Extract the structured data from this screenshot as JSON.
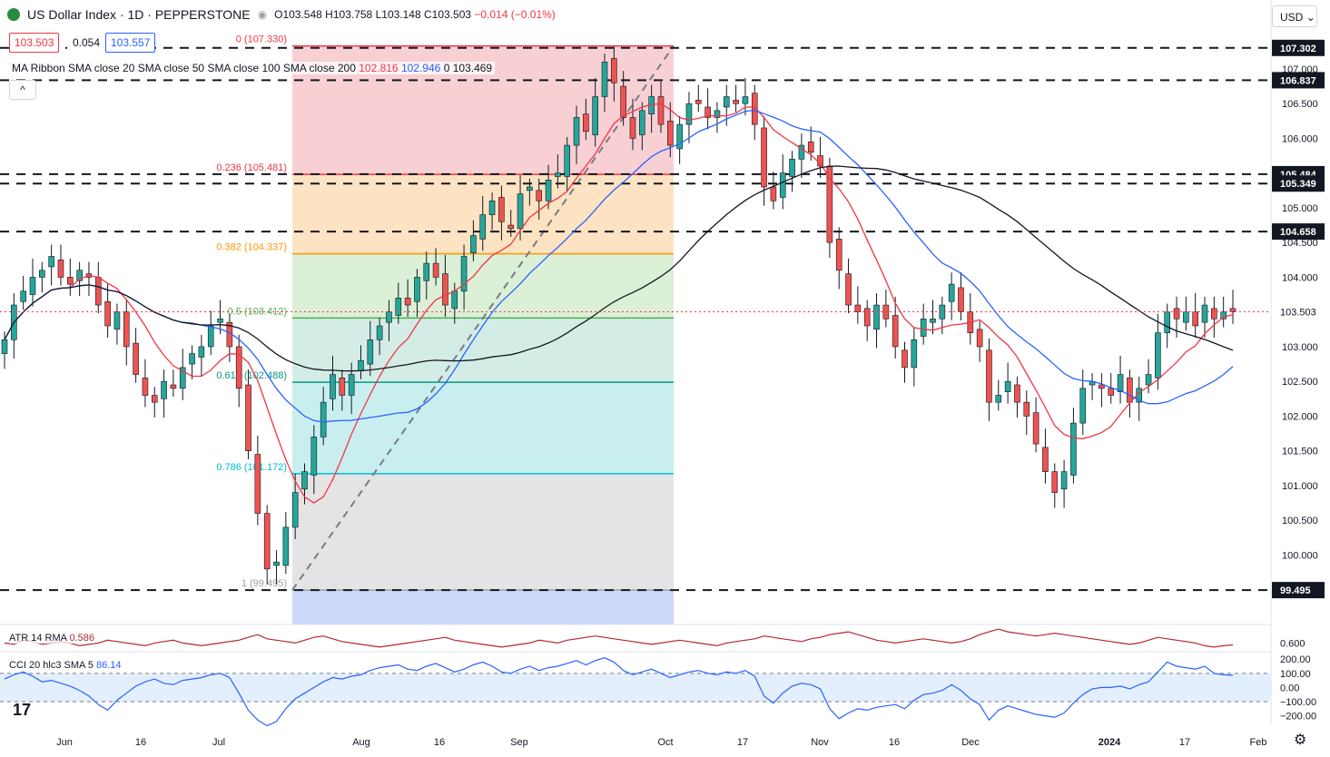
{
  "header": {
    "symbol_title": "US Dollar Index · 1D · PEPPERSTONE",
    "ohlc": {
      "o_label": "O",
      "o": "103.548",
      "h_label": "H",
      "h": "103.758",
      "l_label": "L",
      "l": "103.148",
      "c_label": "C",
      "c": "103.503",
      "change": "−0.014 (−0.01%)"
    },
    "bid": "103.503",
    "spread": "0.054",
    "ask": "103.557",
    "currency": "USD",
    "collapse_glyph": "^",
    "logo": "17"
  },
  "ribbon_legend": {
    "label": "MA Ribbon SMA close 20 SMA close 50 SMA close 100 SMA close 200",
    "v20": "102.816",
    "v50": "102.946",
    "v100": "0",
    "v200": "103.469"
  },
  "colors": {
    "up": "#26a69a",
    "down": "#ef5350",
    "sma20": "#f23645",
    "sma50": "#2962ff",
    "sma200": "#131722",
    "atr": "#b22833",
    "cci": "#2962ff",
    "last": "#f23645"
  },
  "chart_data": [
    {
      "type": "candlestick",
      "title": "US Dollar Index · 1D · PEPPERSTONE",
      "ylim": [
        99.0,
        107.6
      ],
      "y_ticks": [
        100.0,
        100.5,
        101.0,
        101.5,
        102.0,
        102.5,
        103.0,
        103.5,
        104.0,
        104.5,
        105.0,
        105.5,
        106.0,
        106.5,
        107.0
      ],
      "x_ticks": [
        "Jun",
        "16",
        "Jul",
        "Aug",
        "16",
        "Sep",
        "Oct",
        "17",
        "Nov",
        "16",
        "Dec",
        "2024",
        "17",
        "Feb"
      ],
      "horizontal_levels": [
        107.302,
        106.837,
        105.484,
        105.349,
        104.658,
        99.495
      ],
      "last_price": 103.503,
      "fib_retracement": [
        {
          "label": "0 (107.330)",
          "value": 107.33
        },
        {
          "label": "0.236 (105.481)",
          "value": 105.481
        },
        {
          "label": "0.382 (104.337)",
          "value": 104.337
        },
        {
          "label": "0.5 (103.412)",
          "value": 103.412
        },
        {
          "label": "0.618 (102.488)",
          "value": 102.488
        },
        {
          "label": "0.786 (101.172)",
          "value": 101.172
        },
        {
          "label": "1 (99.495)",
          "value": 99.495
        }
      ],
      "series_close": [
        103.1,
        103.6,
        103.8,
        104.0,
        104.1,
        104.3,
        104.0,
        103.9,
        104.1,
        104.0,
        103.6,
        103.3,
        103.5,
        103.0,
        102.6,
        102.3,
        102.2,
        102.5,
        102.4,
        102.7,
        102.9,
        103.0,
        103.3,
        103.4,
        103.0,
        102.4,
        101.5,
        100.6,
        99.8,
        99.9,
        100.4,
        100.9,
        101.2,
        101.7,
        102.2,
        102.6,
        102.3,
        102.6,
        102.8,
        103.1,
        103.3,
        103.5,
        103.7,
        103.6,
        104.0,
        104.2,
        104.0,
        103.6,
        103.8,
        104.3,
        104.6,
        104.9,
        105.1,
        104.8,
        104.7,
        105.2,
        105.3,
        105.1,
        105.4,
        105.5,
        105.9,
        106.3,
        106.1,
        106.6,
        107.1,
        106.8,
        106.3,
        106.0,
        106.4,
        106.6,
        106.2,
        105.9,
        106.2,
        106.5,
        106.5,
        106.3,
        106.4,
        106.6,
        106.5,
        106.6,
        106.2,
        105.3,
        105.1,
        105.5,
        105.7,
        105.9,
        105.8,
        105.6,
        104.5,
        104.1,
        103.6,
        103.5,
        103.3,
        103.6,
        103.4,
        103.0,
        102.7,
        103.1,
        103.4,
        103.4,
        103.6,
        103.9,
        103.5,
        103.2,
        103.0,
        102.2,
        102.3,
        102.5,
        102.2,
        102.0,
        101.6,
        101.2,
        100.9,
        101.2,
        101.9,
        102.4,
        102.5,
        102.4,
        102.3,
        102.6,
        102.2,
        102.4,
        102.6,
        103.2,
        103.5,
        103.4,
        103.5,
        103.3,
        103.6,
        103.4,
        103.5,
        103.5
      ]
    },
    {
      "type": "line",
      "title": "ATR 14 RMA",
      "series": [
        {
          "name": "ATR 14 RMA",
          "last": 0.586
        }
      ],
      "y_ticks": [
        0.6
      ],
      "values": [
        0.6,
        0.59,
        0.62,
        0.61,
        0.59,
        0.6,
        0.61,
        0.6,
        0.58,
        0.59,
        0.6,
        0.62,
        0.61,
        0.6,
        0.59,
        0.58,
        0.6,
        0.61,
        0.62,
        0.6,
        0.59,
        0.58,
        0.59,
        0.6,
        0.61,
        0.62,
        0.64,
        0.66,
        0.63,
        0.62,
        0.61,
        0.6,
        0.62,
        0.64,
        0.65,
        0.63,
        0.61,
        0.6,
        0.59,
        0.58,
        0.57,
        0.58,
        0.59,
        0.6,
        0.61,
        0.62,
        0.63,
        0.64,
        0.62,
        0.61,
        0.6,
        0.59,
        0.58,
        0.57,
        0.58,
        0.59,
        0.6,
        0.62,
        0.61,
        0.6,
        0.62,
        0.63,
        0.64,
        0.65,
        0.64,
        0.63,
        0.62,
        0.61,
        0.6,
        0.59,
        0.6,
        0.61,
        0.62,
        0.61,
        0.6,
        0.59,
        0.58,
        0.6,
        0.61,
        0.62,
        0.63,
        0.65,
        0.64,
        0.63,
        0.62,
        0.61,
        0.63,
        0.64,
        0.66,
        0.67,
        0.68,
        0.66,
        0.64,
        0.62,
        0.61,
        0.6,
        0.61,
        0.62,
        0.63,
        0.62,
        0.61,
        0.6,
        0.61,
        0.63,
        0.66,
        0.68,
        0.7,
        0.68,
        0.67,
        0.66,
        0.65,
        0.66,
        0.67,
        0.66,
        0.65,
        0.64,
        0.63,
        0.62,
        0.61,
        0.6,
        0.59,
        0.6,
        0.62,
        0.64,
        0.63,
        0.62,
        0.61,
        0.6,
        0.58,
        0.57,
        0.58,
        0.586
      ]
    },
    {
      "type": "line",
      "title": "CCI 20 hlc3 SMA 5",
      "series": [
        {
          "name": "CCI 20 hlc3",
          "last": 86.14
        }
      ],
      "y_ticks": [
        200.0,
        100.0,
        0.0,
        -100.0,
        -200.0
      ],
      "ylim": [
        -260,
        240
      ],
      "values": [
        60,
        90,
        110,
        80,
        40,
        50,
        30,
        10,
        -20,
        -60,
        -120,
        -160,
        -90,
        -40,
        10,
        40,
        60,
        30,
        20,
        50,
        60,
        70,
        90,
        100,
        70,
        -40,
        -160,
        -230,
        -270,
        -240,
        -150,
        -80,
        -40,
        0,
        40,
        70,
        60,
        80,
        90,
        120,
        140,
        150,
        160,
        130,
        120,
        150,
        170,
        140,
        110,
        130,
        160,
        180,
        150,
        110,
        100,
        130,
        150,
        120,
        140,
        150,
        170,
        190,
        160,
        190,
        210,
        180,
        120,
        90,
        110,
        130,
        100,
        70,
        90,
        110,
        120,
        100,
        90,
        110,
        100,
        120,
        80,
        -60,
        -110,
        -40,
        10,
        30,
        20,
        -10,
        -150,
        -220,
        -180,
        -150,
        -160,
        -140,
        -130,
        -120,
        -150,
        -90,
        -50,
        -40,
        -20,
        20,
        -20,
        -80,
        -120,
        -230,
        -160,
        -130,
        -150,
        -170,
        -190,
        -200,
        -210,
        -180,
        -110,
        -50,
        -10,
        0,
        0,
        10,
        -10,
        20,
        40,
        110,
        180,
        150,
        140,
        130,
        150,
        100,
        90,
        86
      ]
    }
  ]
}
